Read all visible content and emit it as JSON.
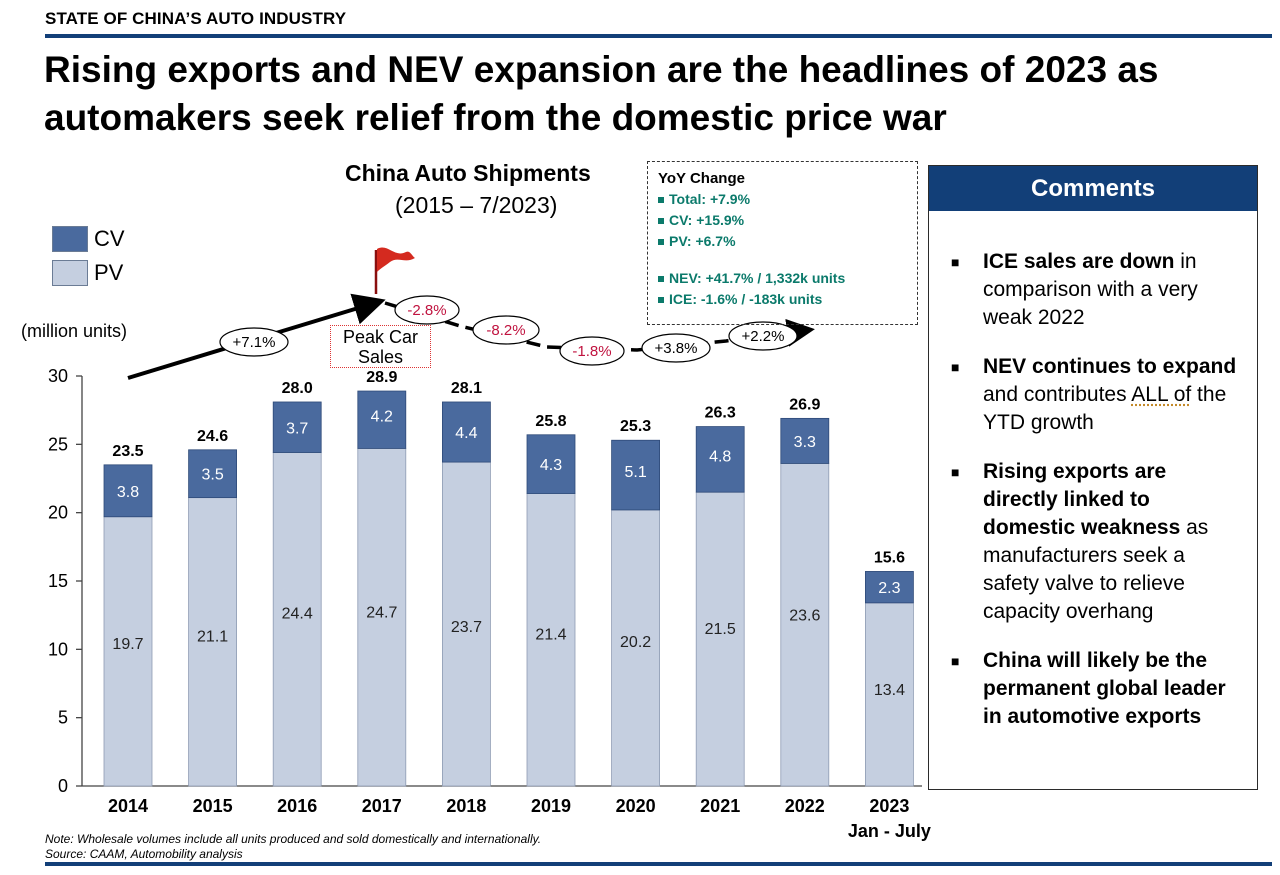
{
  "header": {
    "section_label": "STATE OF CHINA’S AUTO INDUSTRY",
    "headline": "Rising exports and NEV expansion are the headlines of 2023 as automakers seek relief from the domestic price war"
  },
  "colors": {
    "brand_navy": "#123f78",
    "cv": "#4a6a9e",
    "pv": "#c5cfe0",
    "yoy_teal": "#0b7a6b",
    "negative_red": "#c0133f"
  },
  "chart_data": {
    "type": "bar",
    "stacked": true,
    "title": "China Auto Shipments",
    "subtitle": "(2015 – 7/2023)",
    "ylabel": "(million units)",
    "ylim": [
      0,
      30
    ],
    "yticks": [
      0,
      5,
      10,
      15,
      20,
      25,
      30
    ],
    "categories": [
      "2014",
      "2015",
      "2016",
      "2017",
      "2018",
      "2019",
      "2020",
      "2021",
      "2022",
      "2023"
    ],
    "category_sublabels": [
      "",
      "",
      "",
      "",
      "",
      "",
      "",
      "",
      "",
      "Jan - July"
    ],
    "series": [
      {
        "name": "PV",
        "values": [
          19.7,
          21.1,
          24.4,
          24.7,
          23.7,
          21.4,
          20.2,
          21.5,
          23.6,
          13.4
        ]
      },
      {
        "name": "CV",
        "values": [
          3.8,
          3.5,
          3.7,
          4.2,
          4.4,
          4.3,
          5.1,
          4.8,
          3.3,
          2.3
        ]
      }
    ],
    "totals": [
      23.5,
      24.6,
      28.0,
      28.9,
      28.1,
      25.8,
      25.3,
      26.3,
      26.9,
      15.6
    ],
    "total_labels": [
      "23.5",
      "24.6",
      "28.0",
      "28.9",
      "28.1",
      "25.8",
      "25.3",
      "26.3",
      "26.9",
      "15.6"
    ],
    "pv_labels": [
      "19.7",
      "21.1",
      "24.4",
      "24.7",
      "23.7",
      "21.4",
      "20.2",
      "21.5",
      "23.6",
      "13.4"
    ],
    "cv_labels": [
      "3.8",
      "3.5",
      "3.7",
      "4.2",
      "4.4",
      "4.3",
      "5.1",
      "4.8",
      "3.3",
      "2.3"
    ],
    "legend": [
      "CV",
      "PV"
    ],
    "growth_annotations": [
      "+7.1%",
      "-2.8%",
      "-8.2%",
      "-1.8%",
      "+3.8%",
      "+2.2%"
    ],
    "peak_label": "Peak Car Sales"
  },
  "yoy": {
    "title": "YoY Change",
    "items": [
      "Total: +7.9%",
      "CV: +15.9%",
      "PV: +6.7%"
    ],
    "items2": [
      "NEV: +41.7% / 1,332k units",
      "ICE: -1.6% / -183k units"
    ]
  },
  "comments": {
    "header": "Comments",
    "c1_bold": "ICE sales are down",
    "c1_rest": " in comparison with a very weak 2022",
    "c2_bold": "NEV continues to expand",
    "c2_mid": " and contributes ",
    "c2_underlined": "ALL of",
    "c2_end": " the YTD growth",
    "c3_bold": "Rising exports are directly linked to domestic weakness",
    "c3_rest": " as manufacturers seek a safety valve to relieve capacity overhang",
    "c4_bold": "China will likely be the permanent global leader in automotive exports"
  },
  "footer": {
    "note": "Note: Wholesale volumes include all units produced and sold domestically and internationally.",
    "source": "Source: CAAM, Automobility analysis"
  }
}
